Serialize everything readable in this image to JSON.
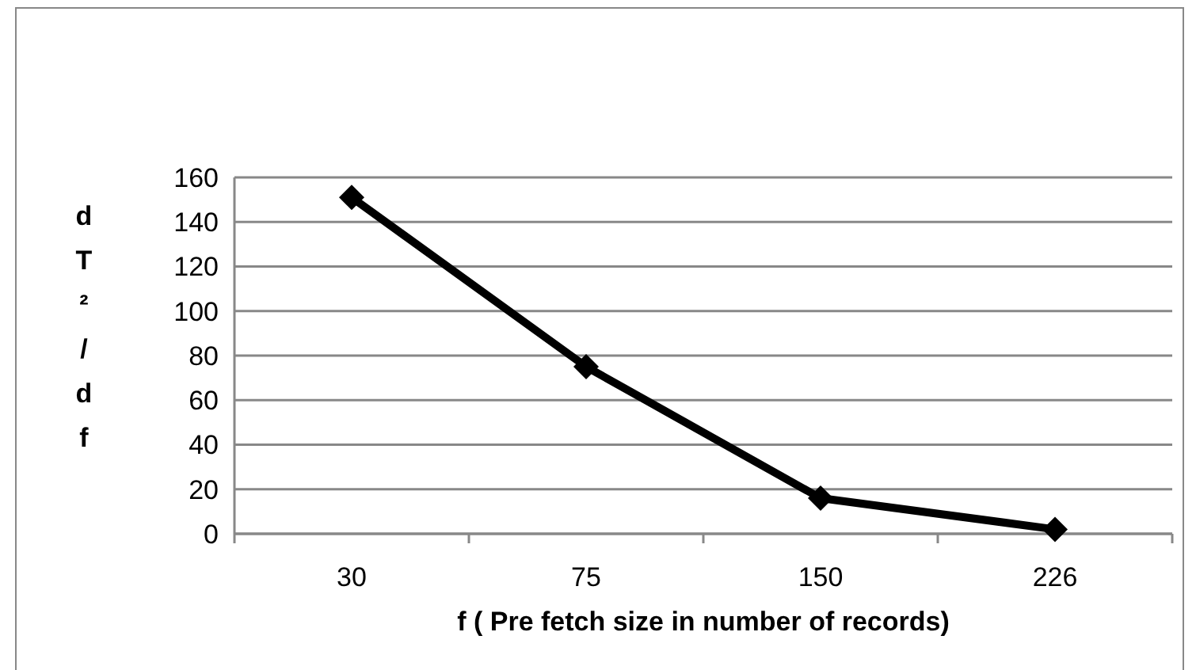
{
  "chart_data": {
    "type": "line",
    "xlabel": "f ( Pre fetch size in number of records)",
    "ylabel": "dT²/df",
    "categories": [
      "30",
      "75",
      "150",
      "226"
    ],
    "series": [
      {
        "color": "#000000",
        "values": [
          151,
          75,
          16,
          2
        ]
      }
    ],
    "ylim": [
      0,
      160
    ],
    "yticks": [
      0,
      20,
      40,
      60,
      80,
      100,
      120,
      140,
      160
    ],
    "grid": "y",
    "marker": "diamond",
    "line_style": "solid"
  }
}
